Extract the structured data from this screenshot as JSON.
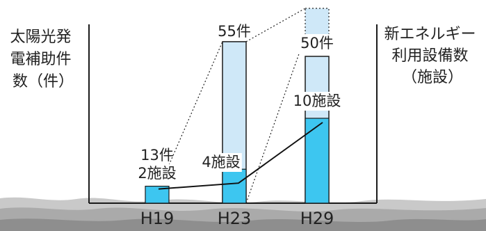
{
  "chart_data": {
    "type": "bar",
    "categories": [
      "H19",
      "H23",
      "H29"
    ],
    "left_axis_label": [
      "太陽光発",
      "電補助件",
      "数（件）"
    ],
    "right_axis_label": [
      "新エネルギー",
      "利用設備数",
      "（施設）"
    ],
    "series": [
      {
        "name": "太陽光発電補助件数（件）",
        "type": "bar",
        "values": [
          13,
          55,
          50
        ],
        "labels": [
          "13件",
          "55件",
          "50件"
        ]
      },
      {
        "name": "新エネルギー利用設備数（施設）",
        "type": "bar",
        "values": [
          2,
          4,
          10
        ],
        "labels": [
          "2施設",
          "4施設",
          "10施設"
        ]
      }
    ],
    "colors": {
      "solar_bar": "#cfe8f8",
      "facility_bar": "#3dc6f0",
      "outline": "#1a1a1a",
      "trend_line": "#111111",
      "ground": "#b9b9b9"
    }
  }
}
